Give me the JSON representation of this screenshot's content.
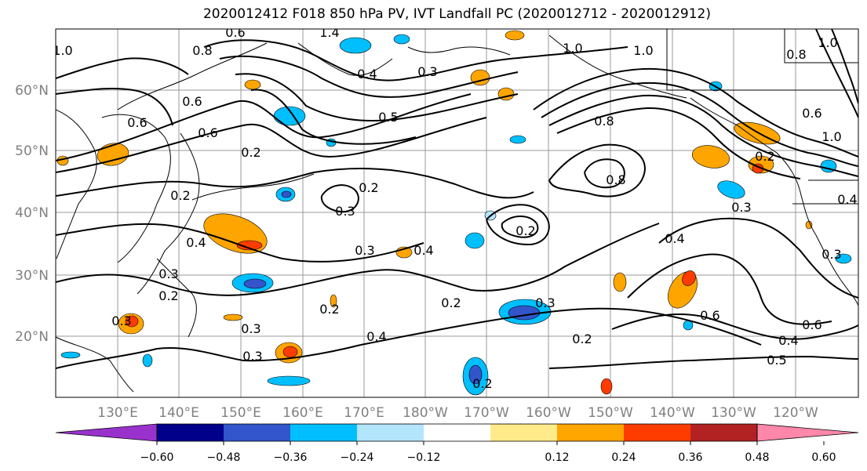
{
  "title": "2020012412 F018 850 hPa PV, IVT Landfall PC (2020012712 - 2020012912)",
  "map": {
    "lat_labels": [
      "60°N",
      "50°N",
      "40°N",
      "30°N",
      "20°N"
    ],
    "lon_labels": [
      "130°E",
      "140°E",
      "150°E",
      "160°E",
      "170°E",
      "180°W",
      "170°W",
      "160°W",
      "150°W",
      "140°W",
      "130°W",
      "120°W"
    ],
    "label_color": "#808080"
  },
  "contour_labels": [
    "1.0",
    "1.4",
    "0.6",
    "0.8",
    "1.0",
    "0.4",
    "0.3",
    "0.5",
    "1.0",
    "0.8",
    "0.6",
    "1.0",
    "0.6",
    "0.8",
    "0.6",
    "1.0",
    "0.2",
    "0.8",
    "0.6",
    "0.3",
    "0.4",
    "0.3",
    "0.2",
    "0.4",
    "0.3",
    "0.2",
    "0.4",
    "0.3",
    "0.2",
    "0.3",
    "0.2",
    "0.3",
    "0.2",
    "0.3",
    "0.2",
    "0.2",
    "0.4",
    "0.6",
    "0.5",
    "0.6",
    "0.3",
    "0.4",
    "0.2",
    "0.3",
    "0.4",
    "0.2"
  ],
  "colorbar": {
    "colors": [
      "#9932cc",
      "#00008b",
      "#3355cc",
      "#00bfff",
      "#b3e5fc",
      "#ffffff",
      "#ffeb8a",
      "#ffa500",
      "#ff3c00",
      "#b22222",
      "#ff88aa"
    ],
    "ticks": [
      "−0.60",
      "−0.48",
      "−0.36",
      "−0.24",
      "−0.12",
      "0.12",
      "0.24",
      "0.36",
      "0.48",
      "0.60"
    ]
  },
  "legend": {
    "colors": {
      "contour": "#000000",
      "coast": "#000000",
      "grid": "#999999"
    }
  }
}
